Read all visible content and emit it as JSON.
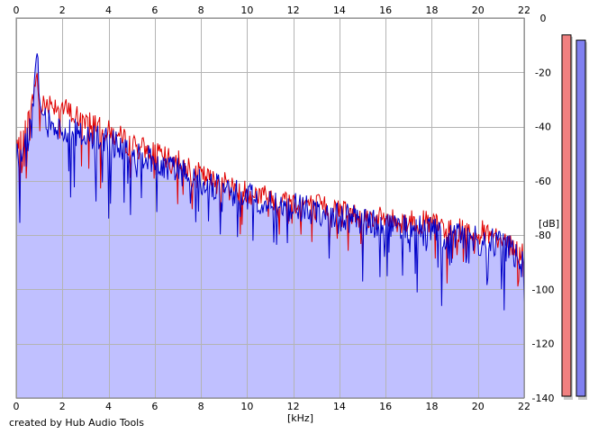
{
  "credit": "created by Hub Audio Tools",
  "chart_data": {
    "type": "area",
    "xlabel": "[kHz]",
    "ylabel": "[dB]",
    "xlim": [
      0,
      22
    ],
    "ylim": [
      -140,
      0
    ],
    "x_ticks": [
      0,
      2,
      4,
      6,
      8,
      10,
      12,
      14,
      16,
      18,
      20,
      22
    ],
    "y_ticks": [
      0,
      -20,
      -40,
      -60,
      -80,
      -100,
      -120,
      -140
    ],
    "grid": true,
    "colors": {
      "red_series": "#e00000",
      "blue_series": "#0000c8",
      "fill": "#c0c0ff",
      "grid": "#b4b4b4",
      "meter_red": "#f08080",
      "meter_blue": "#8080f0"
    },
    "x": [
      0,
      0.3,
      0.5,
      0.7,
      0.8,
      0.9,
      1.0,
      1.2,
      1.5,
      2.0,
      2.5,
      3.0,
      3.5,
      4.0,
      4.5,
      5.0,
      5.5,
      6.0,
      6.5,
      7.0,
      7.5,
      8.0,
      8.5,
      9.0,
      9.5,
      10.0,
      10.5,
      11.0,
      11.5,
      12.0,
      12.5,
      13.0,
      13.5,
      14.0,
      14.5,
      15.0,
      15.5,
      16.0,
      16.5,
      17.0,
      17.5,
      18.0,
      18.5,
      19.0,
      19.5,
      20.0,
      20.5,
      21.0,
      21.5,
      22.0
    ],
    "series": [
      {
        "color": "red",
        "values": [
          -50,
          -44,
          -38,
          -32,
          -24,
          -22,
          -30,
          -32,
          -31,
          -33,
          -36,
          -37,
          -39,
          -42,
          -44,
          -47,
          -48,
          -50,
          -52,
          -52,
          -55,
          -58,
          -60,
          -61,
          -63,
          -64,
          -65,
          -66,
          -67,
          -68,
          -68,
          -69,
          -70,
          -71,
          -72,
          -73,
          -74,
          -74,
          -75,
          -75,
          -75,
          -76,
          -77,
          -78,
          -78,
          -79,
          -79,
          -80,
          -84,
          -88
        ]
      },
      {
        "color": "blue",
        "values": [
          -52,
          -49,
          -44,
          -38,
          -23,
          -13,
          -28,
          -37,
          -40,
          -41,
          -42,
          -43,
          -45,
          -46,
          -48,
          -50,
          -51,
          -53,
          -55,
          -56,
          -58,
          -60,
          -62,
          -63,
          -64,
          -66,
          -67,
          -68,
          -69,
          -70,
          -70,
          -71,
          -72,
          -73,
          -74,
          -75,
          -76,
          -77,
          -77,
          -78,
          -78,
          -79,
          -80,
          -80,
          -81,
          -82,
          -82,
          -83,
          -86,
          -92
        ]
      }
    ],
    "meters": [
      {
        "color": "red",
        "level_db": -3
      },
      {
        "color": "blue",
        "level_db": -5
      }
    ]
  }
}
